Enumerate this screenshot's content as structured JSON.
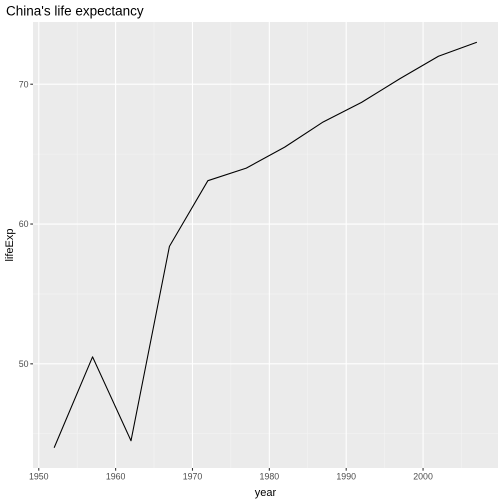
{
  "chart_data": {
    "type": "line",
    "title": "China's life expectancy",
    "xlabel": "year",
    "ylabel": "lifeExp",
    "x": [
      1952,
      1957,
      1962,
      1967,
      1972,
      1977,
      1982,
      1987,
      1992,
      1997,
      2002,
      2007
    ],
    "series": [
      {
        "values": [
          44.0,
          50.5,
          44.5,
          58.4,
          63.1,
          64.0,
          65.5,
          67.3,
          68.7,
          70.4,
          72.0,
          73.0
        ]
      }
    ],
    "xlim": [
      1949.25,
      2009.75
    ],
    "ylim": [
      42.55,
      74.45
    ],
    "x_ticks": [
      1950,
      1960,
      1970,
      1980,
      1990,
      2000
    ],
    "x_tick_labels": [
      "1950",
      "1960",
      "1970",
      "1980",
      "1990",
      "2000"
    ],
    "x_minor_ticks": [
      1955,
      1965,
      1975,
      1985,
      1995,
      2005
    ],
    "y_ticks": [
      50,
      60,
      70
    ],
    "y_tick_labels": [
      "50",
      "60",
      "70"
    ],
    "y_minor_ticks": [
      45,
      55,
      65
    ],
    "grid": true,
    "legend": "none",
    "colors": {
      "panel": "#ebebeb",
      "grid_major": "#ffffff",
      "grid_minor": "#f5f5f5",
      "line": "#000000",
      "tick_label": "#4d4d4d",
      "tick_mark": "#333333"
    }
  }
}
